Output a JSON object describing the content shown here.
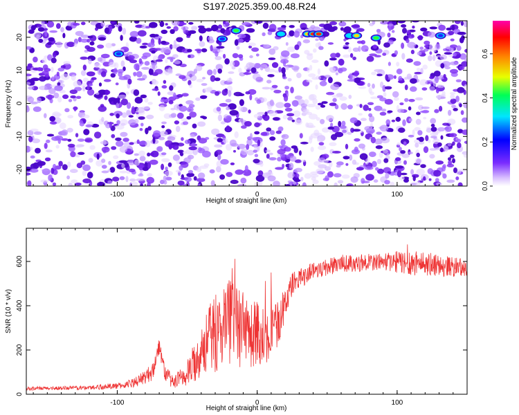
{
  "title": "S197.2025.359.00.48.R24",
  "chart_data": [
    {
      "type": "heatmap",
      "xlabel": "Height of straight line (km)",
      "ylabel": "Frequency (Hz)",
      "xlim": [
        -165,
        150
      ],
      "ylim": [
        -25,
        25
      ],
      "xticks": [
        -100,
        0,
        100
      ],
      "yticks": [
        -20,
        -10,
        0,
        10,
        20
      ],
      "colorbar": {
        "label": "Normalized spectral amplitude",
        "range": [
          0,
          0.75
        ],
        "ticks": [
          0.0,
          0.2,
          0.4,
          0.6
        ]
      },
      "gap_x_range": [
        35,
        45
      ],
      "hotspots": [
        {
          "x": -15,
          "y": 22,
          "amplitude": 0.45
        },
        {
          "x": 17,
          "y": 21,
          "amplitude": 0.3
        },
        {
          "x": 36,
          "y": 21,
          "amplitude": 0.55
        },
        {
          "x": 40,
          "y": 21,
          "amplitude": 0.7
        },
        {
          "x": 44,
          "y": 21,
          "amplitude": 0.65
        },
        {
          "x": 66,
          "y": 20.5,
          "amplitude": 0.3
        },
        {
          "x": 71,
          "y": 20.5,
          "amplitude": 0.5
        },
        {
          "x": 85,
          "y": 19.8,
          "amplitude": 0.4
        },
        {
          "x": 131,
          "y": 20.5,
          "amplitude": 0.25
        },
        {
          "x": -99,
          "y": 15,
          "amplitude": 0.25
        },
        {
          "x": -25,
          "y": 19.5,
          "amplitude": 0.2
        }
      ]
    },
    {
      "type": "line",
      "xlabel": "Height of straight line (km)",
      "ylabel": "SNR (10 * v/v)",
      "xlim": [
        -165,
        150
      ],
      "ylim": [
        0,
        750
      ],
      "xticks": [
        -100,
        0,
        100
      ],
      "yticks": [
        0,
        200,
        400,
        600
      ],
      "series": [
        {
          "color": "#ee3333",
          "envelope_x": [
            -165,
            -120,
            -95,
            -85,
            -75,
            -70,
            -66,
            -60,
            -50,
            -40,
            -30,
            -20,
            -10,
            0,
            5,
            15,
            25,
            40,
            60,
            90,
            110,
            150
          ],
          "envelope_y": [
            25,
            30,
            40,
            60,
            100,
            220,
            100,
            50,
            90,
            200,
            280,
            330,
            280,
            270,
            260,
            320,
            500,
            560,
            590,
            600,
            595,
            570
          ],
          "noise_y": [
            8,
            10,
            15,
            25,
            40,
            40,
            40,
            30,
            60,
            120,
            180,
            200,
            180,
            160,
            140,
            100,
            50,
            40,
            40,
            40,
            60,
            40
          ]
        }
      ]
    }
  ]
}
